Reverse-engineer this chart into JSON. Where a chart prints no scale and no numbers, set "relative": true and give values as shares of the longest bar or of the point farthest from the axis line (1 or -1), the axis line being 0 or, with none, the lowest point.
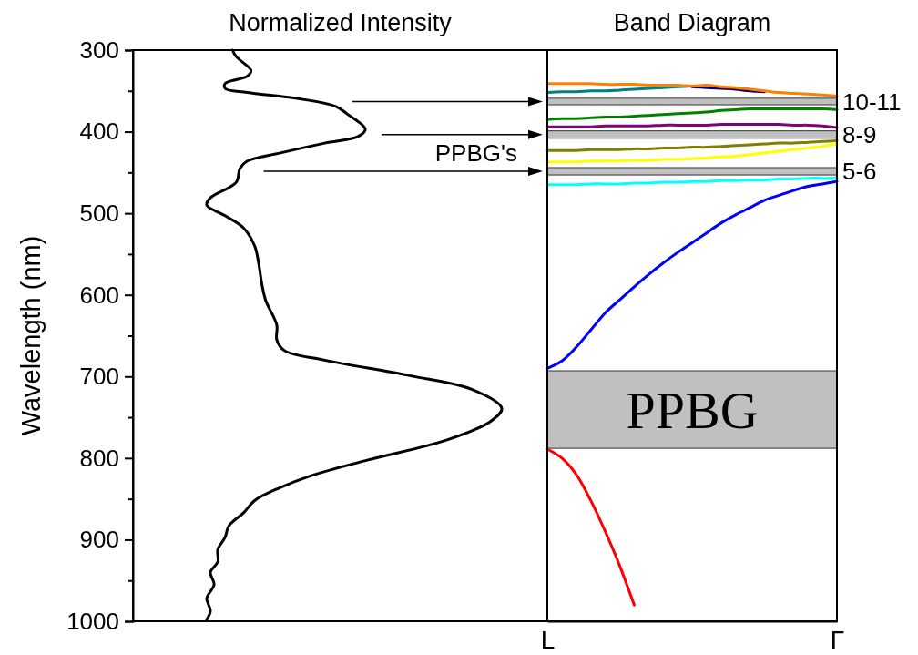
{
  "chart_data": [
    {
      "type": "line",
      "orientation": "horizontal",
      "relative": true,
      "xlabel": "Normalized Intensity",
      "ylabel": "Wavelength (nm)",
      "ylim": [
        1000,
        300
      ],
      "yticks": [
        300,
        {
          "value": 350,
          "label": null
        },
        400,
        {
          "value": 450,
          "label": null
        },
        500,
        {
          "value": 550,
          "label": null
        },
        600,
        {
          "value": 650,
          "label": null
        },
        700,
        {
          "value": 750,
          "label": null
        },
        800,
        {
          "value": 850,
          "label": null
        },
        900,
        {
          "value": 950,
          "label": null
        },
        1000
      ],
      "annotations": [
        "PPBG's"
      ],
      "marker": "none",
      "line_style": "solid",
      "series": [
        {
          "color": "#000000",
          "x": [
            300,
            308,
            325,
            332,
            341,
            347,
            352,
            359,
            369,
            378,
            397,
            406,
            414,
            426,
            436,
            445,
            462,
            481,
            490,
            503,
            518,
            540,
            559,
            588,
            607,
            637,
            655,
            668,
            680,
            699,
            716,
            739,
            755,
            778,
            802,
            822,
            836,
            852,
            867,
            883,
            897,
            912,
            927,
            940,
            955,
            972,
            987,
            998
          ],
          "values": [
            0.27,
            0.28,
            0.32,
            0.31,
            0.25,
            0.25,
            0.31,
            0.44,
            0.55,
            0.58,
            0.63,
            0.61,
            0.52,
            0.4,
            0.31,
            0.29,
            0.28,
            0.21,
            0.2,
            0.25,
            0.3,
            0.33,
            0.34,
            0.35,
            0.36,
            0.39,
            0.39,
            0.41,
            0.52,
            0.75,
            0.92,
            1.0,
            0.97,
            0.85,
            0.64,
            0.48,
            0.4,
            0.33,
            0.3,
            0.26,
            0.25,
            0.23,
            0.23,
            0.21,
            0.22,
            0.2,
            0.21,
            0.2
          ]
        }
      ]
    },
    {
      "type": "line",
      "title": "Band Diagram",
      "categories": [
        "L",
        null,
        null,
        null,
        null,
        null,
        null,
        null,
        null,
        null,
        null,
        null,
        null,
        null,
        null,
        null,
        null,
        null,
        null,
        null,
        "Γ"
      ],
      "ylim": [
        1000,
        300
      ],
      "tick_labels": "x",
      "marker": "none",
      "line_style": "solid",
      "bands": [
        {
          "axis": "y",
          "from": 359,
          "to": 367,
          "label": "10-11",
          "color": "#c0c0c0"
        },
        {
          "axis": "y",
          "from": 399,
          "to": 408,
          "label": "8-9",
          "color": "#c0c0c0"
        },
        {
          "axis": "y",
          "from": 444,
          "to": 453,
          "label": "5-6",
          "color": "#c0c0c0"
        },
        {
          "axis": "y",
          "from": 693,
          "to": 788,
          "label": "PPBG",
          "color": "#c0c0c0"
        }
      ],
      "series": [
        {
          "color": "#008080",
          "values": [
            352,
            351,
            351,
            350,
            350,
            349,
            348,
            347,
            346,
            345,
            344,
            null,
            null,
            null,
            null,
            null,
            null,
            null,
            null,
            null,
            null
          ]
        },
        {
          "color": "#000080",
          "values": [
            null,
            null,
            null,
            null,
            null,
            null,
            null,
            null,
            null,
            null,
            345,
            346,
            347,
            348,
            350,
            351,
            null,
            null,
            null,
            null,
            null
          ]
        },
        {
          "color": "#ff8000",
          "values": [
            341,
            341,
            341,
            341,
            342,
            342,
            342,
            343,
            343,
            343,
            344,
            343,
            345,
            346,
            348,
            350,
            352,
            353,
            354,
            355,
            356
          ]
        },
        {
          "color": "#008000",
          "values": [
            385,
            384,
            384,
            383,
            382,
            382,
            381,
            380,
            379,
            378,
            377,
            376,
            374,
            373,
            372,
            372,
            372,
            372,
            372,
            372,
            373
          ]
        },
        {
          "color": "#800080",
          "values": [
            394,
            394,
            394,
            394,
            393,
            393,
            393,
            393,
            392,
            392,
            392,
            392,
            391,
            391,
            391,
            391,
            391,
            392,
            392,
            393,
            395
          ]
        },
        {
          "color": "#808000",
          "values": [
            423,
            423,
            423,
            422,
            422,
            422,
            421,
            421,
            420,
            420,
            419,
            419,
            418,
            417,
            416,
            415,
            414,
            414,
            413,
            412,
            411
          ]
        },
        {
          "color": "#ffff00",
          "values": [
            437,
            437,
            437,
            436,
            436,
            436,
            435,
            435,
            434,
            434,
            433,
            432,
            431,
            430,
            428,
            426,
            424,
            422,
            420,
            418,
            415
          ]
        },
        {
          "color": "#00ffff",
          "values": [
            465,
            465,
            465,
            464,
            464,
            464,
            463,
            463,
            462,
            462,
            461,
            461,
            460,
            460,
            459,
            459,
            458,
            458,
            457,
            457,
            457
          ]
        },
        {
          "color": "#0000ff",
          "values": [
            690,
            681,
            664,
            643,
            622,
            606,
            590,
            575,
            561,
            548,
            536,
            524,
            512,
            502,
            493,
            484,
            478,
            472,
            467,
            464,
            461
          ]
        },
        {
          "color": "#ff0000",
          "values": [
            789,
            800,
            820,
            852,
            890,
            932,
            980,
            null,
            null,
            null,
            null,
            null,
            null,
            null,
            null,
            null,
            null,
            null,
            null,
            null,
            null
          ]
        }
      ]
    }
  ]
}
